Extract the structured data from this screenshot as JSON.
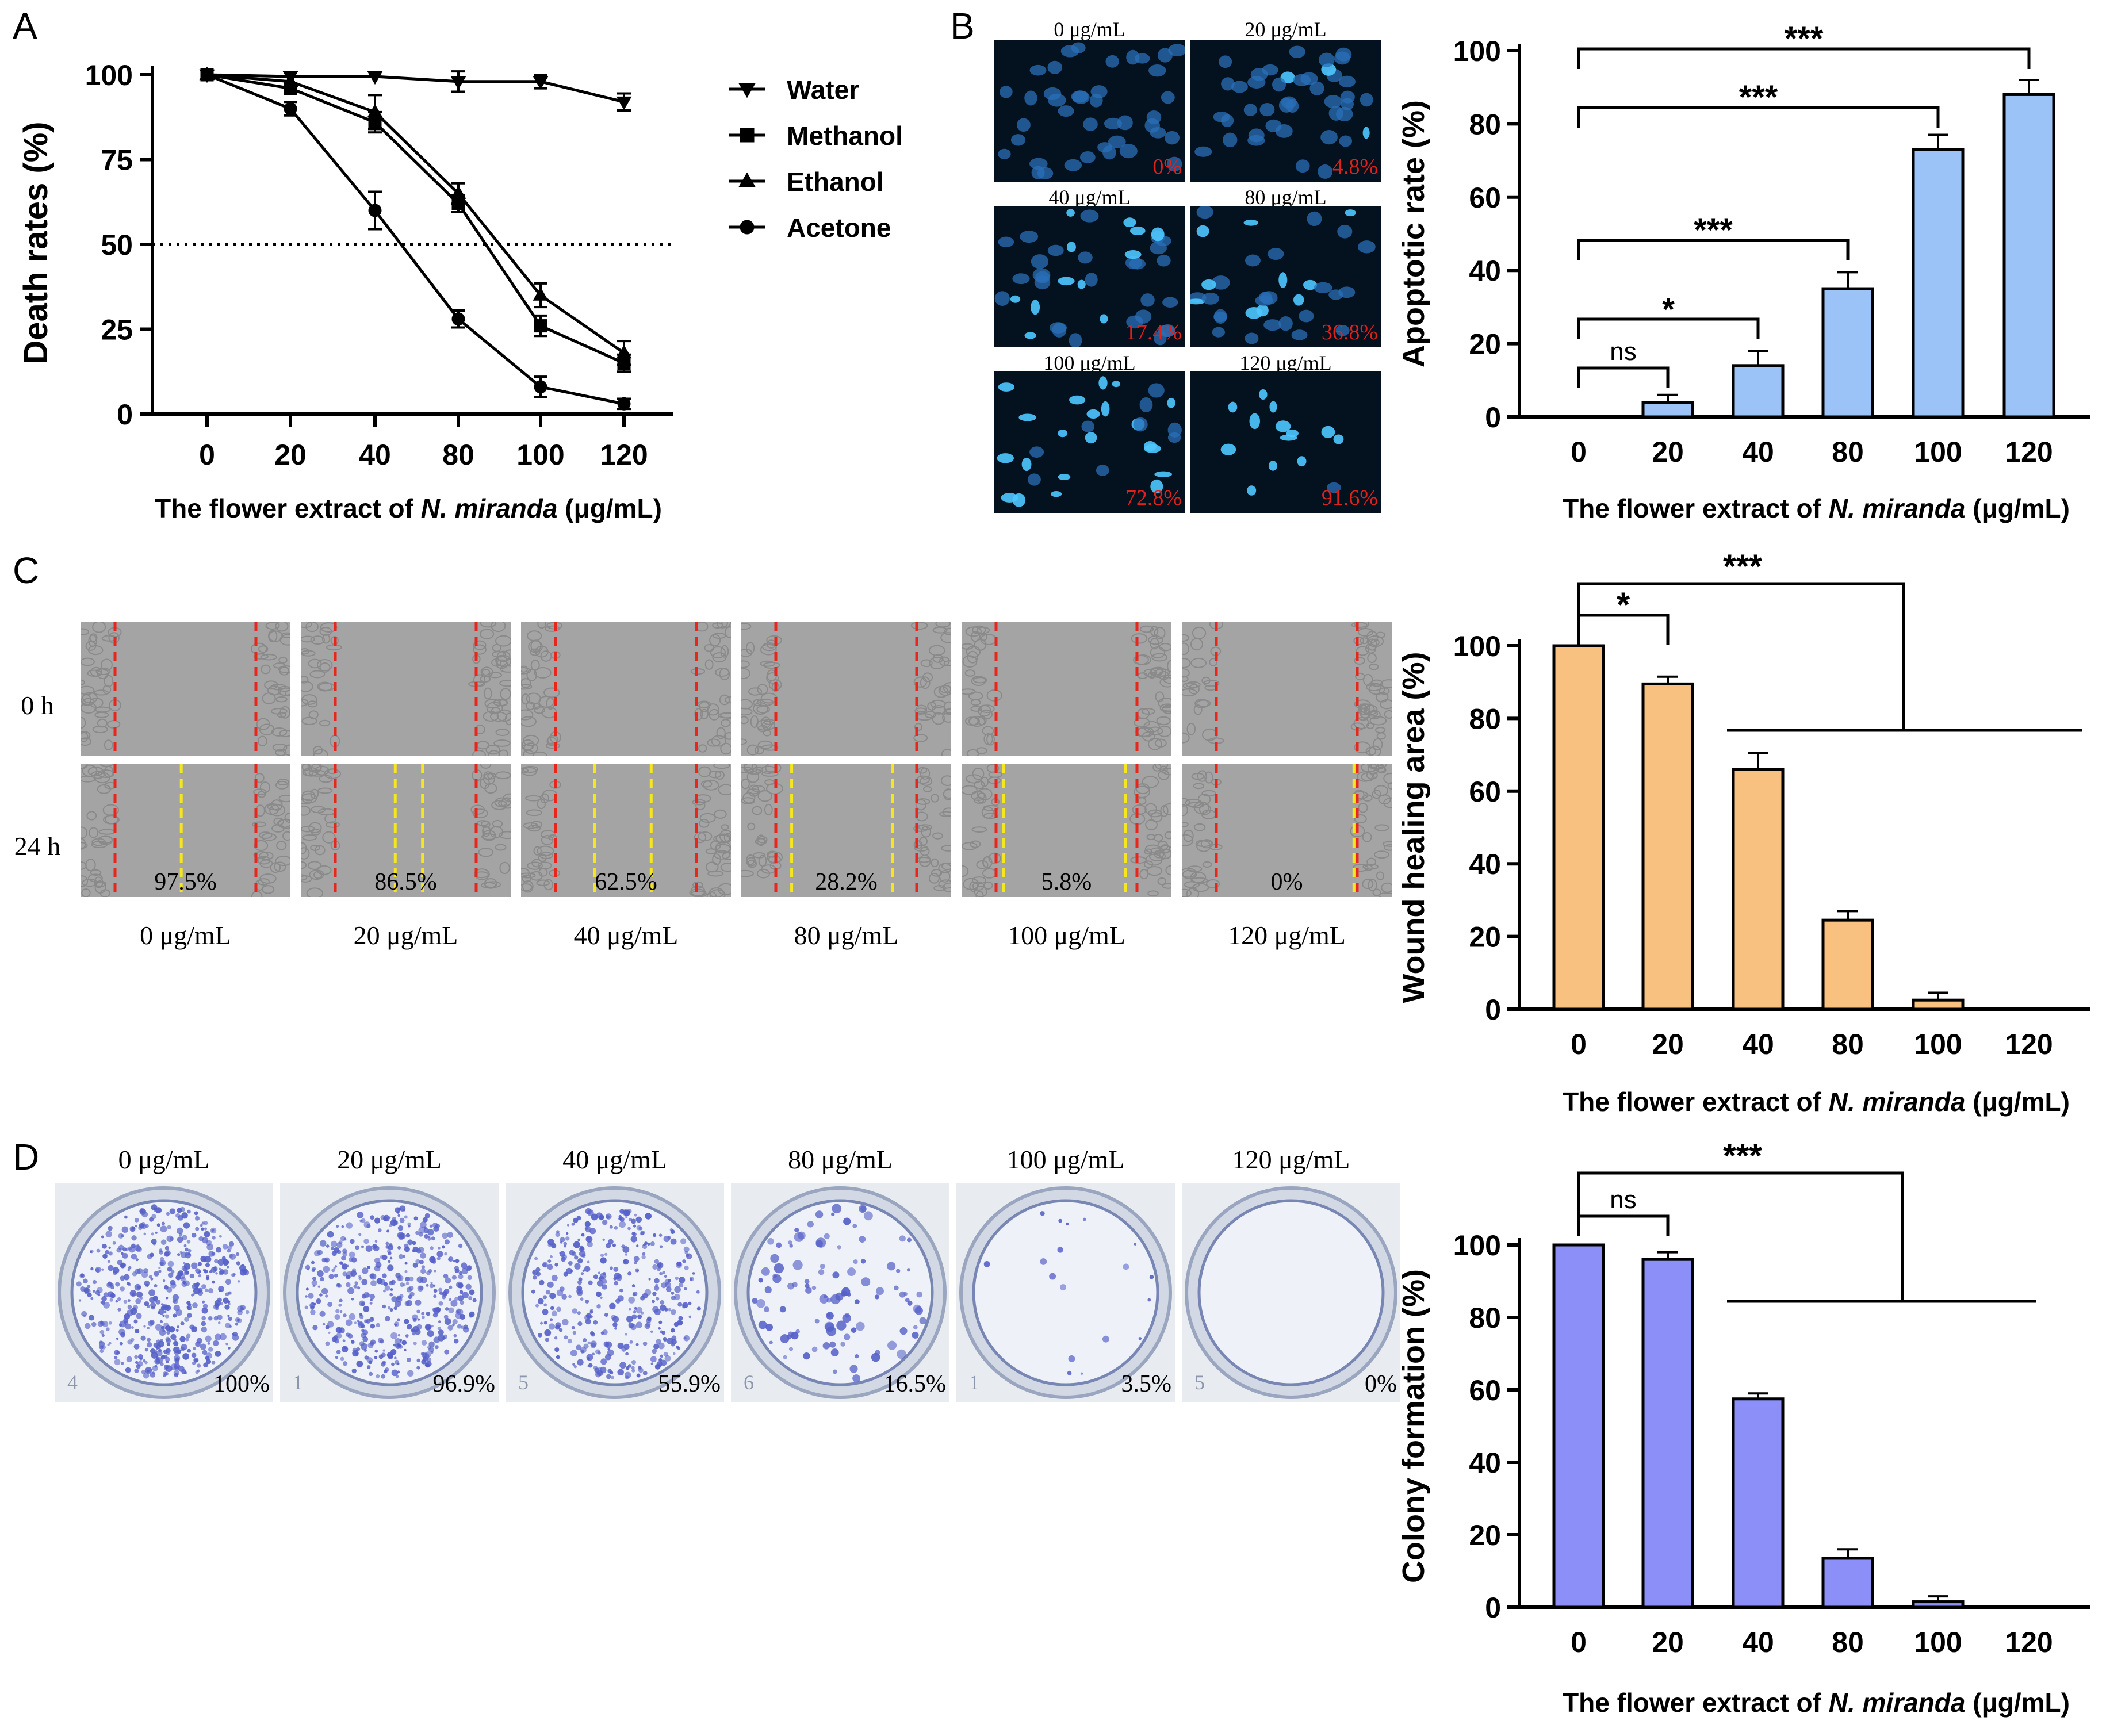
{
  "panel_labels": {
    "A": "A",
    "B": "B",
    "C": "C",
    "D": "D"
  },
  "x_unit_prefix": "The flower extract of ",
  "x_unit_species": "N. miranda",
  "x_unit_suffix": " (μg/mL)",
  "chart_data": [
    {
      "id": "A",
      "type": "line",
      "ylabel": "Death rates (%)",
      "xlabel": "The flower extract of N. miranda (μg/mL)",
      "categories": [
        "0",
        "20",
        "40",
        "80",
        "100",
        "120"
      ],
      "ylim": [
        0,
        100
      ],
      "yticks": [
        0,
        25,
        50,
        75,
        100
      ],
      "reference_line": 50,
      "legend_position": "right",
      "series": [
        {
          "name": "Water",
          "marker": "triangle-down",
          "values": [
            100,
            99.5,
            99.5,
            98,
            98,
            92
          ],
          "errors": [
            0.5,
            0.5,
            0.5,
            3,
            2,
            2.5
          ]
        },
        {
          "name": "Methanol",
          "marker": "square",
          "values": [
            100,
            96,
            86,
            62,
            26,
            15
          ],
          "errors": [
            0.5,
            1.5,
            3,
            2.5,
            3,
            2.5
          ]
        },
        {
          "name": "Ethanol",
          "marker": "triangle-up",
          "values": [
            100,
            98,
            89,
            65,
            35,
            18
          ],
          "errors": [
            0.5,
            1.5,
            5,
            3,
            3.5,
            3.5
          ]
        },
        {
          "name": "Acetone",
          "marker": "circle",
          "values": [
            100,
            90,
            60,
            28,
            8,
            3
          ],
          "errors": [
            0.5,
            2,
            5.5,
            2.5,
            3,
            1.5
          ]
        }
      ]
    },
    {
      "id": "B",
      "type": "bar",
      "ylabel": "Apoptotic rate (%)",
      "xlabel": "The flower extract of N. miranda (μg/mL)",
      "categories": [
        "0",
        "20",
        "40",
        "80",
        "100",
        "120"
      ],
      "values": [
        0,
        4,
        14,
        35,
        73,
        88
      ],
      "errors": [
        0,
        2,
        4,
        4.5,
        4,
        4
      ],
      "ylim": [
        0,
        100
      ],
      "yticks": [
        0,
        20,
        40,
        60,
        80,
        100
      ],
      "color": "#9cc3f7",
      "significance": [
        {
          "label": "ns",
          "target": "20"
        },
        {
          "label": "*",
          "target": "40"
        },
        {
          "label": "***",
          "target": "80"
        },
        {
          "label": "***",
          "target": "100"
        },
        {
          "label": "***",
          "target": "120"
        }
      ]
    },
    {
      "id": "C",
      "type": "bar",
      "ylabel": "Wound healing area (%)",
      "xlabel": "The flower extract of N. miranda (μg/mL)",
      "categories": [
        "0",
        "20",
        "40",
        "80",
        "100",
        "120"
      ],
      "values": [
        100,
        89.5,
        66,
        24.5,
        2.5,
        0
      ],
      "errors": [
        0,
        2,
        4.5,
        2.5,
        2,
        0
      ],
      "ylim": [
        0,
        100
      ],
      "yticks": [
        0,
        20,
        40,
        60,
        80,
        100
      ],
      "color": "#f8c180",
      "significance": [
        {
          "label": "*",
          "target": "20"
        },
        {
          "label": "***",
          "target": "40-120"
        }
      ]
    },
    {
      "id": "D",
      "type": "bar",
      "ylabel": "Colony formation (%)",
      "xlabel": "The flower extract of N. miranda (μg/mL)",
      "categories": [
        "0",
        "20",
        "40",
        "80",
        "100",
        "120"
      ],
      "values": [
        100,
        96,
        57.5,
        13.5,
        1.5,
        0
      ],
      "errors": [
        0,
        2,
        1.5,
        2.5,
        1.5,
        0
      ],
      "ylim": [
        0,
        100
      ],
      "yticks": [
        0,
        20,
        40,
        60,
        80,
        100
      ],
      "color": "#8b8ff7",
      "significance": [
        {
          "label": "ns",
          "target": "20"
        },
        {
          "label": "***",
          "target": "40-120"
        }
      ]
    }
  ],
  "panel_b_images": [
    {
      "label": "0 μg/mL",
      "percent": "0%"
    },
    {
      "label": "20 μg/mL",
      "percent": "4.8%"
    },
    {
      "label": "40 μg/mL",
      "percent": "17.4%"
    },
    {
      "label": "80 μg/mL",
      "percent": "36.8%"
    },
    {
      "label": "100 μg/mL",
      "percent": "72.8%"
    },
    {
      "label": "120 μg/mL",
      "percent": "91.6%"
    }
  ],
  "panel_c_images": {
    "row_labels": [
      "0 h",
      "24 h"
    ],
    "columns": [
      {
        "label": "0 μg/mL",
        "percent": "97.5%"
      },
      {
        "label": "20 μg/mL",
        "percent": "86.5%"
      },
      {
        "label": "40 μg/mL",
        "percent": "62.5%"
      },
      {
        "label": "80 μg/mL",
        "percent": "28.2%"
      },
      {
        "label": "100 μg/mL",
        "percent": "5.8%"
      },
      {
        "label": "120 μg/mL",
        "percent": "0%"
      }
    ]
  },
  "panel_d_images": [
    {
      "label": "0 μg/mL",
      "percent": "100%",
      "well": "4"
    },
    {
      "label": "20 μg/mL",
      "percent": "96.9%",
      "well": "1"
    },
    {
      "label": "40 μg/mL",
      "percent": "55.9%",
      "well": "5"
    },
    {
      "label": "80 μg/mL",
      "percent": "16.5%",
      "well": "6"
    },
    {
      "label": "100 μg/mL",
      "percent": "3.5%",
      "well": "1"
    },
    {
      "label": "120 μg/mL",
      "percent": "0%",
      "well": "5"
    }
  ],
  "colors": {
    "fluorescence_bg": "#04121f",
    "nucleus": "#2a6fb8",
    "apoptotic": "#4ec8ff",
    "percent_red": "#e0201a",
    "wound_bg": "#a4a4a4",
    "wound_red_line": "#e8261c",
    "wound_yellow_line": "#f5e61d",
    "plate_bg": "#e8ecf1",
    "colony": "#5560c8"
  }
}
